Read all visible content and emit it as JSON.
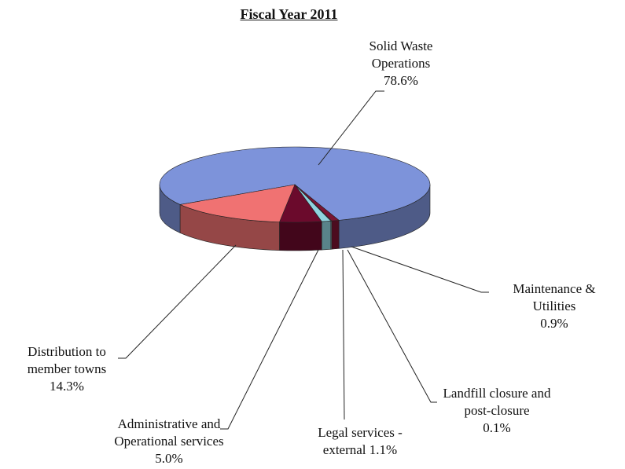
{
  "chart_data": {
    "type": "pie",
    "title": "Fiscal Year 2011",
    "categories": [
      "Solid Waste Operations",
      "Maintenance & Utilities",
      "Landfill closure and post-closure",
      "Legal services - external",
      "Administrative and Operational services",
      "Distribution to member towns"
    ],
    "values": [
      78.6,
      0.9,
      0.1,
      1.1,
      5.0,
      14.3
    ],
    "value_labels": [
      "78.6%",
      "0.9%",
      "0.1%",
      "1.1%",
      "5.0%",
      "14.3%"
    ],
    "colors": [
      "#7d93da",
      "#7a1432",
      "#b8e2ea",
      "#8fd3de",
      "#6b0a2c",
      "#f07272"
    ],
    "three_d": true
  }
}
